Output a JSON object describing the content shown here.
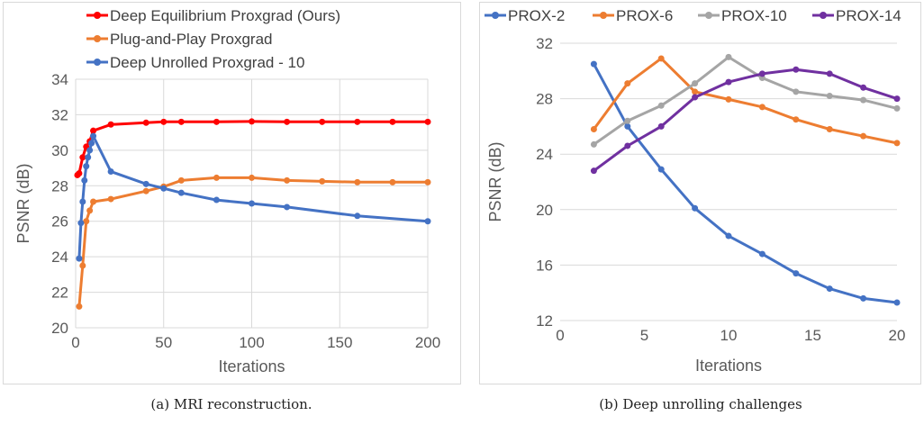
{
  "chart_data": [
    {
      "type": "line",
      "xlabel": "Iterations",
      "ylabel": "PSNR (dB)",
      "xlim": [
        0,
        200
      ],
      "ylim": [
        20,
        34
      ],
      "xticks": [
        0,
        50,
        100,
        150,
        200
      ],
      "yticks": [
        20,
        22,
        24,
        26,
        28,
        30,
        32,
        34
      ],
      "grid": "vertical and horizontal",
      "legend_position": "top",
      "caption": "(a)  MRI reconstruction.",
      "series": [
        {
          "name": "Deep Equilibrium Proxgrad (Ours)",
          "color": "#ff0000",
          "x": [
            1,
            2,
            4,
            6,
            8,
            10,
            20,
            40,
            50,
            60,
            80,
            100,
            120,
            140,
            160,
            180,
            200
          ],
          "y": [
            28.6,
            28.7,
            29.6,
            30.2,
            30.5,
            31.1,
            31.45,
            31.55,
            31.6,
            31.6,
            31.6,
            31.62,
            31.6,
            31.6,
            31.6,
            31.6,
            31.6
          ]
        },
        {
          "name": "Plug-and-Play Proxgrad",
          "color": "#ed7d31",
          "x": [
            2,
            4,
            6,
            8,
            10,
            20,
            40,
            50,
            60,
            80,
            100,
            120,
            140,
            160,
            180,
            200
          ],
          "y": [
            21.2,
            23.5,
            26.0,
            26.6,
            27.1,
            27.25,
            27.7,
            27.95,
            28.3,
            28.45,
            28.45,
            28.3,
            28.25,
            28.2,
            28.2,
            28.2
          ]
        },
        {
          "name": "Deep Unrolled Proxgrad - 10",
          "color": "#4472c4",
          "x": [
            2,
            3,
            4,
            5,
            6,
            7,
            8,
            9,
            10,
            20,
            40,
            50,
            60,
            80,
            100,
            120,
            160,
            200
          ],
          "y": [
            23.9,
            25.9,
            27.1,
            28.3,
            29.1,
            29.6,
            30.0,
            30.4,
            30.8,
            28.8,
            28.1,
            27.85,
            27.6,
            27.2,
            27.0,
            26.8,
            26.3,
            26.0
          ]
        }
      ]
    },
    {
      "type": "line",
      "xlabel": "Iterations",
      "ylabel": "PSNR (dB)",
      "xlim": [
        0,
        20
      ],
      "ylim": [
        12,
        32
      ],
      "xticks": [
        0,
        5,
        10,
        15,
        20
      ],
      "yticks": [
        12,
        16,
        20,
        24,
        28,
        32
      ],
      "grid": "horizontal",
      "legend_position": "top",
      "caption": "(b)  Deep unrolling challenges",
      "series": [
        {
          "name": "PROX-2",
          "color": "#4472c4",
          "x": [
            2,
            4,
            6,
            8,
            10,
            12,
            14,
            16,
            18,
            20
          ],
          "y": [
            30.5,
            26.0,
            22.9,
            20.1,
            18.1,
            16.8,
            15.4,
            14.3,
            13.6,
            13.3
          ]
        },
        {
          "name": "PROX-6",
          "color": "#ed7d31",
          "x": [
            2,
            4,
            6,
            8,
            10,
            12,
            14,
            16,
            18,
            20
          ],
          "y": [
            25.8,
            29.1,
            30.9,
            28.5,
            27.95,
            27.4,
            26.5,
            25.8,
            25.3,
            24.8
          ]
        },
        {
          "name": "PROX-10",
          "color": "#a5a5a5",
          "x": [
            2,
            4,
            6,
            8,
            10,
            12,
            14,
            16,
            18,
            20
          ],
          "y": [
            24.7,
            26.4,
            27.5,
            29.1,
            31.0,
            29.5,
            28.5,
            28.2,
            27.9,
            27.3
          ]
        },
        {
          "name": "PROX-14",
          "color": "#7030a0",
          "x": [
            2,
            4,
            6,
            8,
            10,
            12,
            14,
            16,
            18,
            20
          ],
          "y": [
            22.8,
            24.6,
            26.0,
            28.1,
            29.2,
            29.8,
            30.1,
            29.8,
            28.8,
            28.0
          ]
        }
      ]
    }
  ]
}
